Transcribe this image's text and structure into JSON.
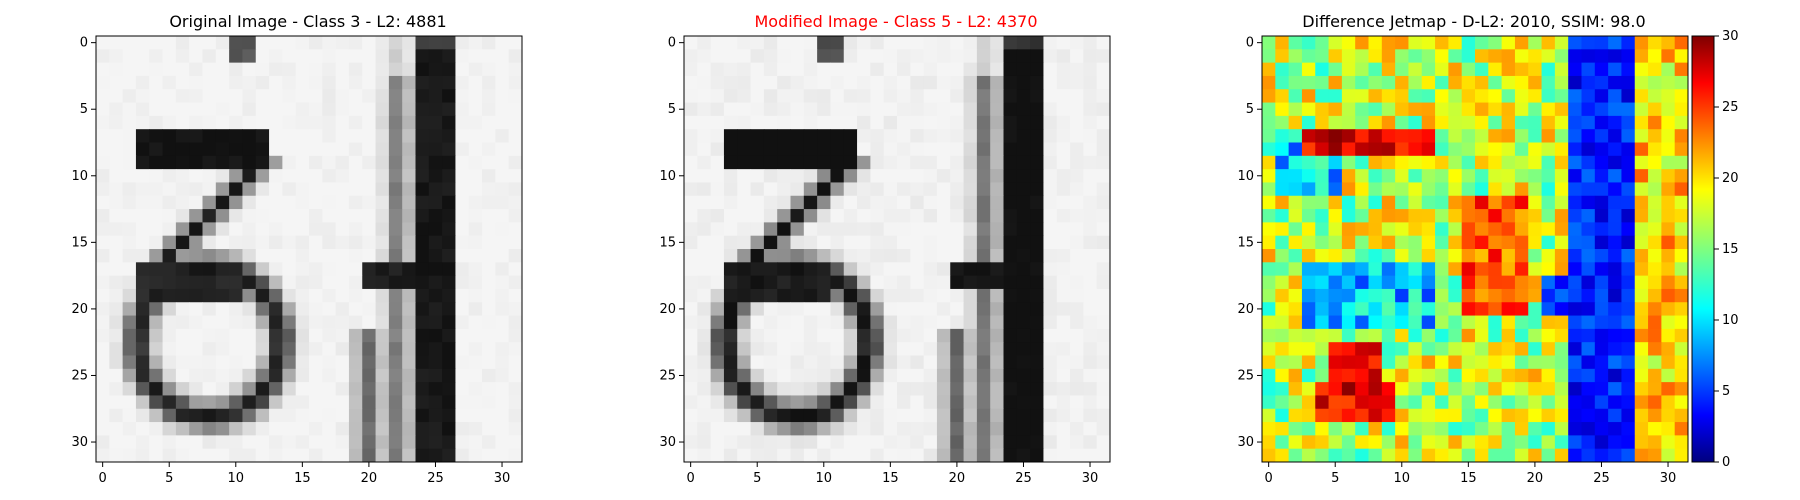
{
  "chart_data": [
    {
      "type": "heatmap",
      "title": "Original Image - Class 3 - L2: 4881",
      "title_color": "#000000",
      "colormap": "gray",
      "xlim": [
        0,
        31
      ],
      "ylim": [
        31,
        0
      ],
      "xticks": [
        "0",
        "5",
        "10",
        "15",
        "20",
        "25",
        "30"
      ],
      "yticks": [
        "0",
        "5",
        "10",
        "15",
        "20",
        "25",
        "30"
      ]
    },
    {
      "type": "heatmap",
      "title": "Modified Image - Class 5 - L2: 4370",
      "title_color": "#ff0000",
      "colormap": "gray",
      "xlim": [
        0,
        31
      ],
      "ylim": [
        31,
        0
      ],
      "xticks": [
        "0",
        "5",
        "10",
        "15",
        "20",
        "25",
        "30"
      ],
      "yticks": [
        "0",
        "5",
        "10",
        "15",
        "20",
        "25",
        "30"
      ]
    },
    {
      "type": "heatmap",
      "title": "Difference Jetmap - D-L2: 2010, SSIM: 98.0",
      "title_color": "#000000",
      "colormap": "jet",
      "xlim": [
        0,
        31
      ],
      "ylim": [
        31,
        0
      ],
      "xticks": [
        "0",
        "5",
        "10",
        "15",
        "20",
        "25",
        "30"
      ],
      "yticks": [
        "0",
        "5",
        "10",
        "15",
        "20",
        "25",
        "30"
      ],
      "colorbar": {
        "min": 0,
        "max": 30,
        "ticks": [
          "0",
          "5",
          "10",
          "15",
          "20",
          "25",
          "30"
        ]
      }
    }
  ]
}
